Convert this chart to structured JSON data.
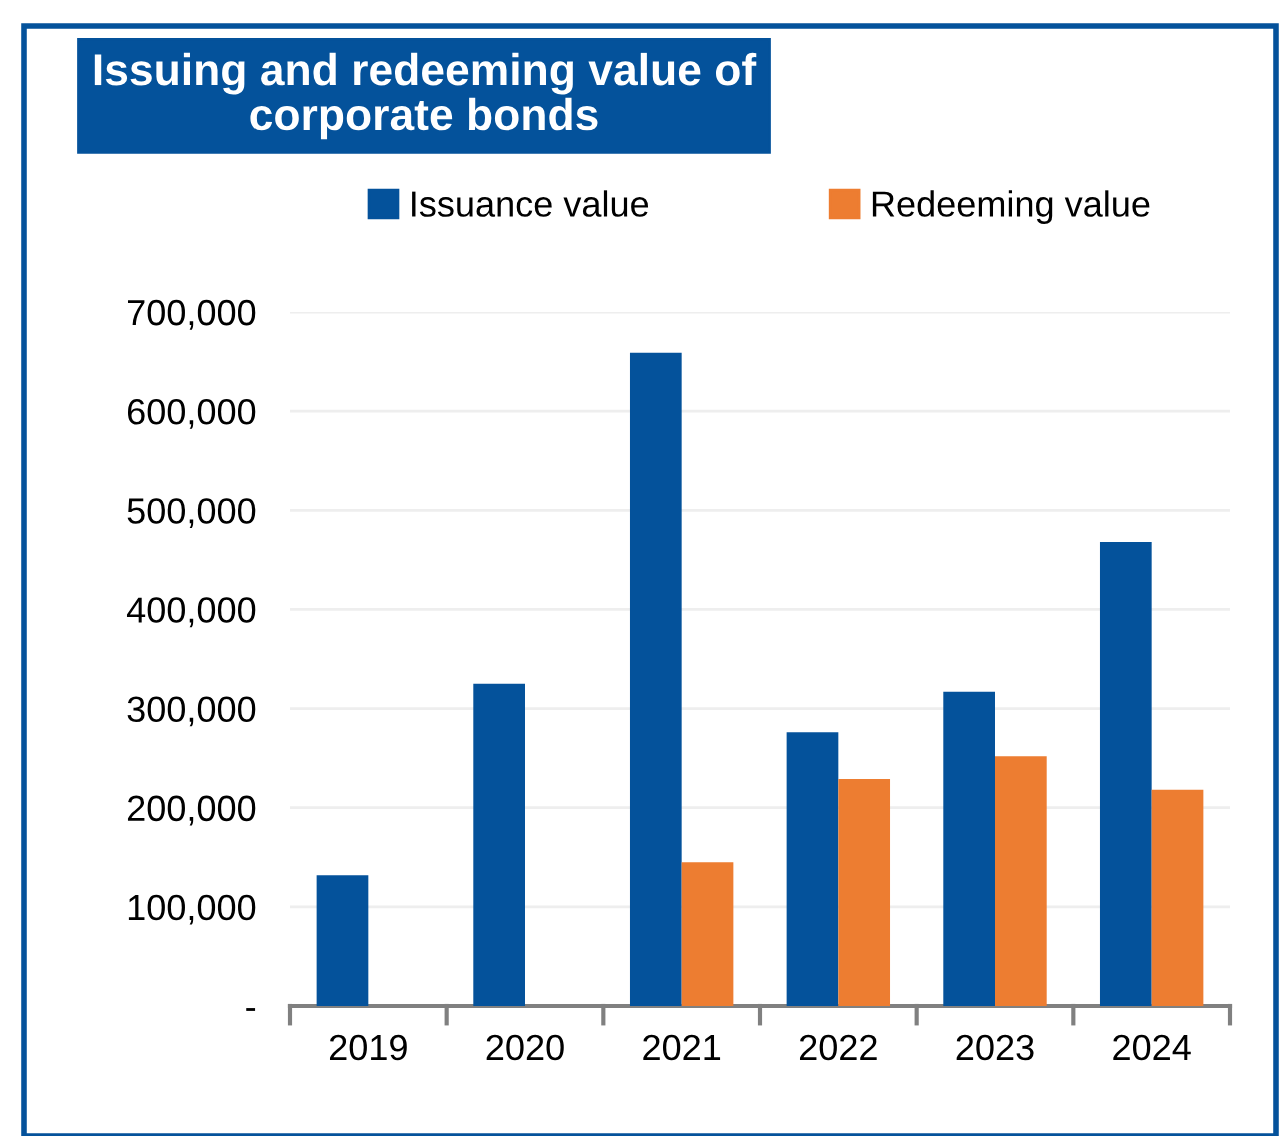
{
  "chart_data": {
    "type": "bar",
    "title": "Issuing and redeeming value of\ncorporate bonds",
    "categories": [
      "2019",
      "2020",
      "2021",
      "2022",
      "2023",
      "2024"
    ],
    "series": [
      {
        "name": "Issuance value",
        "color": "#04529b",
        "values": [
          132000,
          325000,
          659000,
          276000,
          317000,
          468000
        ]
      },
      {
        "name": "Redeeming value",
        "color": "#ed7d31",
        "values": [
          null,
          null,
          145000,
          229000,
          252000,
          218000
        ]
      }
    ],
    "ylim": [
      0,
      700000
    ],
    "yticks": [
      {
        "value": 0,
        "label": "-"
      },
      {
        "value": 100000,
        "label": "100,000"
      },
      {
        "value": 200000,
        "label": "200,000"
      },
      {
        "value": 300000,
        "label": "300,000"
      },
      {
        "value": 400000,
        "label": "400,000"
      },
      {
        "value": 500000,
        "label": "500,000"
      },
      {
        "value": 600000,
        "label": "600,000"
      },
      {
        "value": 700000,
        "label": "700,000"
      }
    ],
    "grid": "y",
    "legend": "top"
  }
}
